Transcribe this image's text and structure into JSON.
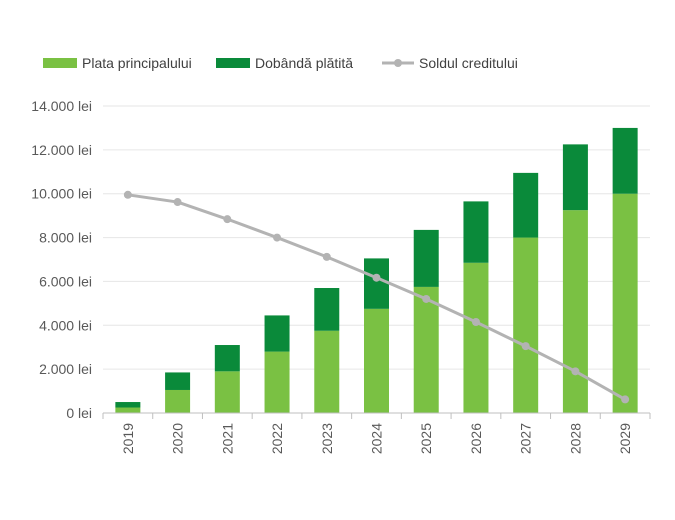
{
  "chart_data": {
    "type": "bar",
    "subtype": "stacked-bar-with-line",
    "title": "",
    "xlabel": "",
    "ylabel": "",
    "categories": [
      "2019",
      "2020",
      "2021",
      "2022",
      "2023",
      "2024",
      "2025",
      "2026",
      "2027",
      "2028",
      "2029"
    ],
    "ylim": [
      0,
      14000
    ],
    "yticks": [
      0,
      2000,
      4000,
      6000,
      8000,
      10000,
      12000,
      14000
    ],
    "ytick_labels": [
      "0 lei",
      "2.000 lei",
      "4.000 lei",
      "6.000 lei",
      "8.000 lei",
      "10.000 lei",
      "12.000 lei",
      "14.000 lei"
    ],
    "grid": true,
    "legend_position": "top",
    "series": [
      {
        "name": "Plata principalului",
        "kind": "bar",
        "color": "#7ac143",
        "values": [
          250,
          1050,
          1900,
          2800,
          3750,
          4750,
          5750,
          6850,
          8000,
          9250,
          10000
        ]
      },
      {
        "name": "Dobândă plătită",
        "kind": "bar",
        "color": "#0a8a3a",
        "values": [
          250,
          800,
          1200,
          1650,
          1950,
          2300,
          2600,
          2800,
          2950,
          3000,
          3000
        ]
      },
      {
        "name": "Soldul creditului",
        "kind": "line",
        "color": "#b3b3b3",
        "values": [
          9950,
          9620,
          8840,
          8000,
          7120,
          6170,
          5200,
          4150,
          3050,
          1900,
          620
        ]
      }
    ]
  }
}
